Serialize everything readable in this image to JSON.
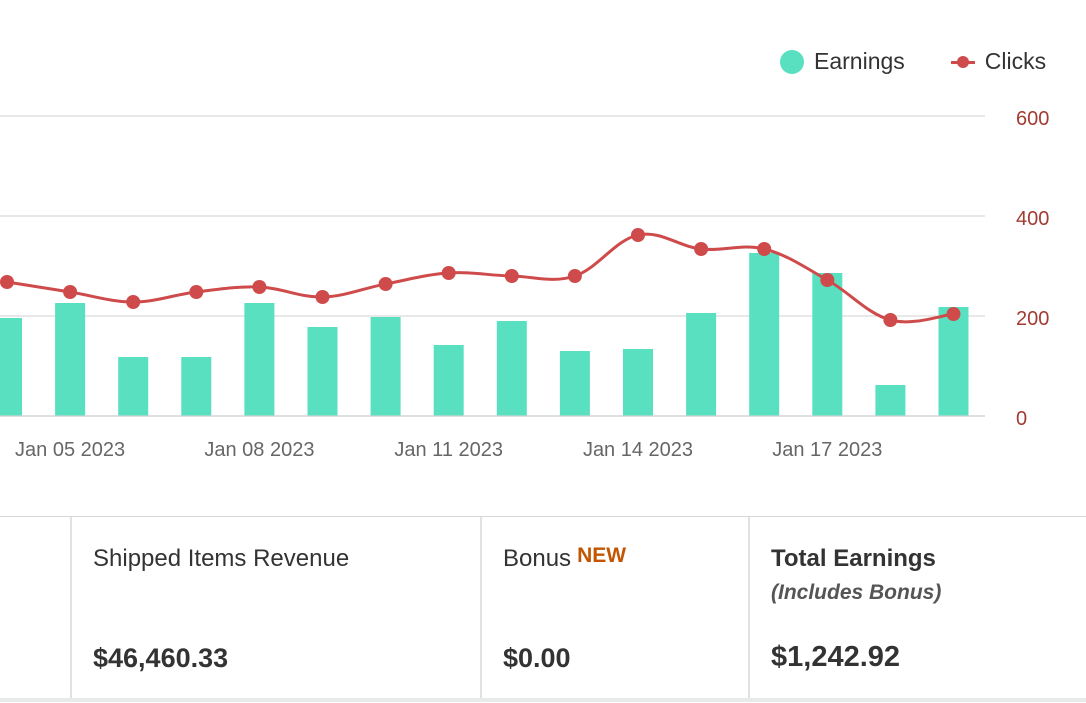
{
  "legend": {
    "earnings_label": "Earnings",
    "clicks_label": "Clicks"
  },
  "colors": {
    "earnings": "#58e0c0",
    "clicks": "#cf4b4b",
    "grid": "#d9d9d9",
    "axis_text": "#a23b33",
    "x_text": "#666666"
  },
  "chart_data": {
    "type": "bar",
    "categories": [
      "Jan 04 2023",
      "Jan 05 2023",
      "Jan 06 2023",
      "Jan 07 2023",
      "Jan 08 2023",
      "Jan 09 2023",
      "Jan 10 2023",
      "Jan 11 2023",
      "Jan 12 2023",
      "Jan 13 2023",
      "Jan 14 2023",
      "Jan 15 2023",
      "Jan 16 2023",
      "Jan 17 2023",
      "Jan 18 2023",
      "Jan 19 2023"
    ],
    "x_tick_labels": [
      "Jan 05 2023",
      "Jan 08 2023",
      "Jan 11 2023",
      "Jan 14 2023",
      "Jan 17 2023"
    ],
    "series": [
      {
        "name": "Earnings",
        "type": "bar",
        "values": [
          196,
          226,
          118,
          118,
          226,
          178,
          198,
          142,
          190,
          130,
          134,
          206,
          326,
          286,
          62,
          218
        ]
      },
      {
        "name": "Clicks",
        "type": "line",
        "axis": "right",
        "values": [
          268,
          248,
          228,
          248,
          258,
          238,
          264,
          286,
          280,
          280,
          362,
          334,
          334,
          272,
          192,
          204
        ]
      }
    ],
    "y_right_ticks": [
      "0",
      "200",
      "400",
      "600"
    ],
    "ylim_right": [
      0,
      600
    ],
    "grid": true,
    "legend_position": "top-right"
  },
  "summary": {
    "shipped_items_revenue": {
      "title": "Shipped Items Revenue",
      "value": "$46,460.33"
    },
    "bonus": {
      "title": "Bonus",
      "badge": "NEW",
      "value": "$0.00"
    },
    "total_earnings": {
      "title": "Total Earnings",
      "subtitle": "(Includes Bonus)",
      "value": "$1,242.92"
    }
  }
}
